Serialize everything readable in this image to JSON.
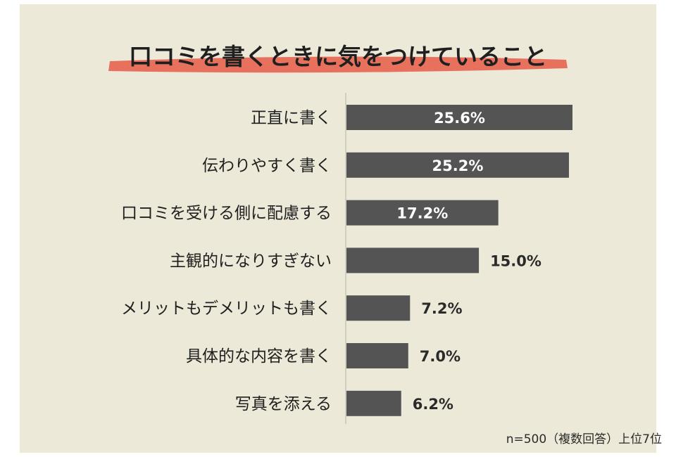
{
  "title": "口コミを書くときに気をつけていること",
  "note": "n=500（複数回答）上位7位",
  "colors": {
    "background": "#ede9d8",
    "bar": "#545454",
    "highlight": "#e8715e",
    "value_inside": "#ffffff",
    "value_outside": "#2a2a2a"
  },
  "chart_data": {
    "type": "bar",
    "orientation": "horizontal",
    "categories": [
      "正直に書く",
      "伝わりやすく書く",
      "口コミを受ける側に配慮する",
      "主観的になりすぎない",
      "メリットもデメリットも書く",
      "具体的な内容を書く",
      "写真を添える"
    ],
    "values": [
      25.6,
      25.2,
      17.2,
      15.0,
      7.2,
      7.0,
      6.2
    ],
    "value_labels": [
      "25.6%",
      "25.2%",
      "17.2%",
      "15.0%",
      "7.2%",
      "7.0%",
      "6.2%"
    ],
    "xlim": [
      0,
      26
    ],
    "grid": false,
    "legend": "none"
  }
}
